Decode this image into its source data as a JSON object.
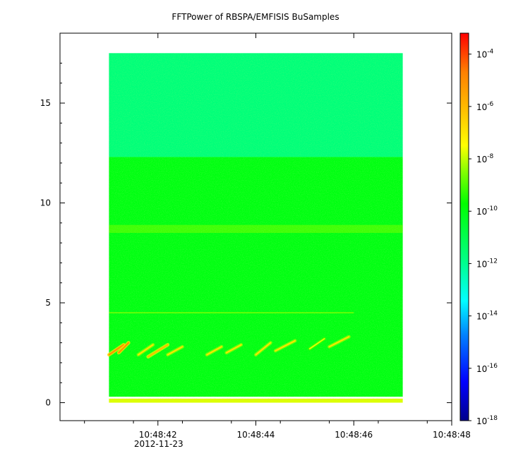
{
  "chart_data": {
    "type": "heatmap",
    "title": "FFTPower of RBSPA/EMFISIS  BuSamples",
    "xlabel": "",
    "ylabel": "",
    "x_ticks": [
      {
        "label": "10:48:42",
        "t": 42
      },
      {
        "label": "10:48:44",
        "t": 44
      },
      {
        "label": "10:48:46",
        "t": 46
      },
      {
        "label": "10:48:48",
        "t": 48
      }
    ],
    "x_date_label": "2012-11-23",
    "x_range": [
      40.0,
      48.0
    ],
    "data_time_range": [
      41.0,
      47.0
    ],
    "y_ticks": [
      0,
      5,
      10,
      15
    ],
    "y_range": [
      -0.9,
      18.5
    ],
    "data_freq_range": [
      0,
      17.5
    ],
    "colorbar": {
      "scale": "log",
      "range_exp": [
        -18,
        -3.2
      ],
      "ticks": [
        {
          "base": "10",
          "exp": "-4"
        },
        {
          "base": "10",
          "exp": "-6"
        },
        {
          "base": "10",
          "exp": "-8"
        },
        {
          "base": "10",
          "exp": "-10"
        },
        {
          "base": "10",
          "exp": "-12"
        },
        {
          "base": "10",
          "exp": "-14"
        },
        {
          "base": "10",
          "exp": "-16"
        },
        {
          "base": "10",
          "exp": "-18"
        }
      ],
      "colormap": [
        "#00008b",
        "#0000ff",
        "#0080ff",
        "#00ffff",
        "#00ff80",
        "#00ff00",
        "#80ff00",
        "#ffff00",
        "#ffc000",
        "#ff8000",
        "#ff0000"
      ]
    },
    "spectrogram_bands": [
      {
        "freq_range": [
          12.3,
          17.5
        ],
        "power_exp": -12.0,
        "description_color": "#00ff80"
      },
      {
        "freq_range": [
          0.3,
          12.3
        ],
        "power_exp": -10.8,
        "description_color": "#33ff33"
      },
      {
        "freq_range": [
          8.5,
          8.9
        ],
        "power_exp": -9.6,
        "description_color": "#b0ff40"
      },
      {
        "freq_range": [
          0.0,
          0.2
        ],
        "power_exp": -8.0,
        "description_color": "#ffe000"
      }
    ],
    "chorus_elements": [
      {
        "t_start": 41.0,
        "t_end": 41.3,
        "f_start": 2.4,
        "f_end": 2.9,
        "max_exp": -5
      },
      {
        "t_start": 41.2,
        "t_end": 41.4,
        "f_start": 2.5,
        "f_end": 3.0,
        "max_exp": -5
      },
      {
        "t_start": 41.6,
        "t_end": 41.9,
        "f_start": 2.4,
        "f_end": 2.9,
        "max_exp": -7
      },
      {
        "t_start": 41.8,
        "t_end": 42.2,
        "f_start": 2.3,
        "f_end": 2.9,
        "max_exp": -6
      },
      {
        "t_start": 42.2,
        "t_end": 42.5,
        "f_start": 2.4,
        "f_end": 2.8,
        "max_exp": -7
      },
      {
        "t_start": 43.0,
        "t_end": 43.3,
        "f_start": 2.4,
        "f_end": 2.8,
        "max_exp": -7
      },
      {
        "t_start": 43.4,
        "t_end": 43.7,
        "f_start": 2.5,
        "f_end": 2.9,
        "max_exp": -7
      },
      {
        "t_start": 44.0,
        "t_end": 44.3,
        "f_start": 2.4,
        "f_end": 3.0,
        "max_exp": -7
      },
      {
        "t_start": 44.4,
        "t_end": 44.8,
        "f_start": 2.6,
        "f_end": 3.1,
        "max_exp": -7
      },
      {
        "t_start": 45.1,
        "t_end": 45.4,
        "f_start": 2.7,
        "f_end": 3.2,
        "max_exp": -8
      },
      {
        "t_start": 45.5,
        "t_end": 45.9,
        "f_start": 2.8,
        "f_end": 3.3,
        "max_exp": -7
      }
    ],
    "line_feature": {
      "freq": 4.5,
      "power_exp": -10,
      "t_range": [
        41.0,
        46.0
      ]
    }
  }
}
